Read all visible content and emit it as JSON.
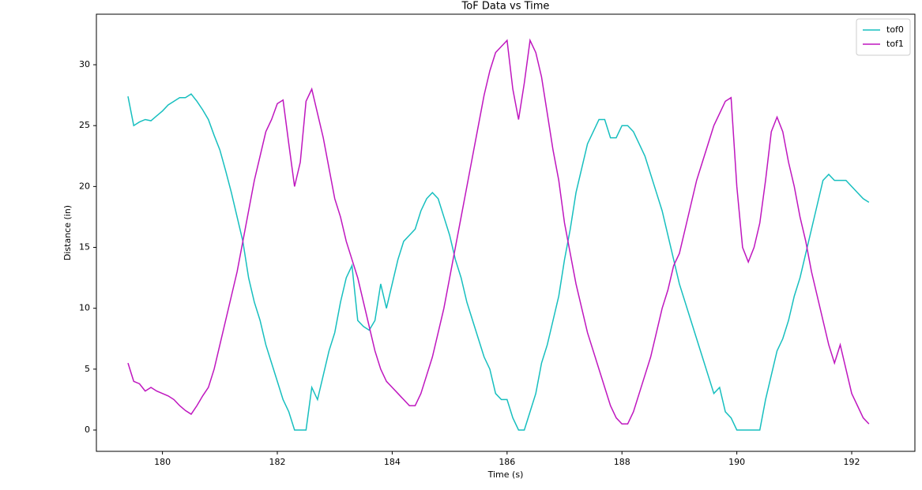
{
  "chart_data": {
    "type": "line",
    "title": "ToF Data vs Time",
    "x_label": "Time (s)",
    "y_label": "Distance (in)",
    "x": [
      179.4,
      179.5,
      179.6,
      179.7,
      179.8,
      179.9,
      180.0,
      180.1,
      180.2,
      180.3,
      180.4,
      180.5,
      180.6,
      180.7,
      180.8,
      180.9,
      181.0,
      181.1,
      181.2,
      181.3,
      181.4,
      181.5,
      181.6,
      181.7,
      181.8,
      181.9,
      182.0,
      182.1,
      182.2,
      182.3,
      182.4,
      182.5,
      182.6,
      182.7,
      182.8,
      182.9,
      183.0,
      183.1,
      183.2,
      183.3,
      183.4,
      183.5,
      183.6,
      183.7,
      183.8,
      183.9,
      184.0,
      184.1,
      184.2,
      184.3,
      184.4,
      184.5,
      184.6,
      184.7,
      184.8,
      184.9,
      185.0,
      185.1,
      185.2,
      185.3,
      185.4,
      185.5,
      185.6,
      185.7,
      185.8,
      185.9,
      186.0,
      186.1,
      186.2,
      186.3,
      186.4,
      186.5,
      186.6,
      186.7,
      186.8,
      186.9,
      187.0,
      187.1,
      187.2,
      187.3,
      187.4,
      187.5,
      187.6,
      187.7,
      187.8,
      187.9,
      188.0,
      188.1,
      188.2,
      188.3,
      188.4,
      188.5,
      188.6,
      188.7,
      188.8,
      188.9,
      189.0,
      189.1,
      189.2,
      189.3,
      189.4,
      189.5,
      189.6,
      189.7,
      189.8,
      189.9,
      190.0,
      190.1,
      190.2,
      190.3,
      190.4,
      190.5,
      190.6,
      190.7,
      190.8,
      190.9,
      191.0,
      191.1,
      191.2,
      191.3,
      191.4,
      191.5,
      191.6,
      191.7,
      191.8,
      191.9,
      192.0,
      192.1,
      192.2,
      192.3
    ],
    "series": [
      {
        "name": "tof0",
        "color": "#17bfbf",
        "values": [
          27.4,
          25.0,
          25.3,
          25.5,
          25.4,
          25.8,
          26.2,
          26.7,
          27.0,
          27.3,
          27.3,
          27.6,
          27.0,
          26.3,
          25.5,
          24.2,
          23.0,
          21.3,
          19.5,
          17.5,
          15.5,
          12.5,
          10.5,
          9.0,
          7.0,
          5.5,
          4.0,
          2.5,
          1.5,
          0,
          0,
          0,
          3.5,
          2.5,
          4.5,
          6.5,
          8.0,
          10.5,
          12.5,
          13.5,
          9.0,
          8.5,
          8.2,
          9.0,
          12.0,
          10.0,
          12.0,
          14.0,
          15.5,
          16.0,
          16.5,
          18.0,
          19.0,
          19.5,
          19.0,
          17.5,
          16.0,
          14.0,
          12.5,
          10.5,
          9.0,
          7.5,
          6.0,
          5.0,
          3.0,
          2.5,
          2.5,
          1.0,
          0,
          0,
          1.5,
          3.0,
          5.5,
          7.0,
          9.0,
          11.0,
          14.0,
          16.5,
          19.5,
          21.5,
          23.5,
          24.5,
          25.5,
          25.5,
          24.0,
          24.0,
          25.0,
          25.0,
          24.5,
          23.5,
          22.5,
          21.0,
          19.5,
          18.0,
          16.0,
          14.0,
          12.0,
          10.5,
          9.0,
          7.5,
          6.0,
          4.5,
          3.0,
          3.5,
          1.5,
          1.0,
          0,
          0,
          0,
          0,
          0,
          2.5,
          4.5,
          6.5,
          7.5,
          9.0,
          11.0,
          12.5,
          14.5,
          16.5,
          18.5,
          20.5,
          21.0,
          20.5,
          20.5,
          20.5,
          20.0,
          19.5,
          19.0,
          18.7
        ]
      },
      {
        "name": "tof1",
        "color": "#bf17bf",
        "values": [
          5.5,
          4.0,
          3.8,
          3.2,
          3.5,
          3.2,
          3.0,
          2.8,
          2.5,
          2.0,
          1.6,
          1.3,
          2.0,
          2.8,
          3.5,
          5.0,
          7.0,
          9.0,
          11.0,
          13.0,
          15.5,
          18.0,
          20.5,
          22.5,
          24.5,
          25.5,
          26.8,
          27.1,
          23.5,
          20.0,
          22.0,
          27.0,
          28.0,
          26.0,
          24.0,
          21.5,
          19.0,
          17.5,
          15.5,
          14.0,
          12.5,
          10.5,
          8.5,
          6.5,
          5.0,
          4.0,
          3.5,
          3.0,
          2.5,
          2.0,
          2.0,
          3.0,
          4.5,
          6.0,
          8.0,
          10.0,
          12.5,
          15.0,
          17.5,
          20.0,
          22.5,
          25.0,
          27.5,
          29.5,
          31.0,
          31.5,
          32.0,
          28.0,
          25.5,
          28.5,
          32.0,
          31.0,
          29.0,
          26.0,
          23.0,
          20.5,
          17.0,
          14.5,
          12.0,
          10.0,
          8.0,
          6.5,
          5.0,
          3.5,
          2.0,
          1.0,
          0.5,
          0.5,
          1.5,
          3.0,
          4.5,
          6.0,
          8.0,
          10.0,
          11.5,
          13.5,
          14.5,
          16.5,
          18.5,
          20.5,
          22.0,
          23.5,
          25.0,
          26.0,
          27.0,
          27.3,
          20.0,
          15.0,
          13.8,
          15.0,
          17.0,
          20.5,
          24.5,
          25.7,
          24.5,
          22.0,
          20.0,
          17.5,
          15.5,
          13.0,
          11.0,
          9.0,
          7.0,
          5.5,
          7.0,
          5.0,
          3.0,
          2.0,
          1.0,
          0.5
        ]
      }
    ],
    "xlim": [
      178.85,
      193.1
    ],
    "ylim": [
      -1.75,
      34.15
    ],
    "xticks": [
      180,
      182,
      184,
      186,
      188,
      190,
      192
    ],
    "yticks": [
      0,
      5,
      10,
      15,
      20,
      25,
      30
    ],
    "legend": "upper right"
  }
}
